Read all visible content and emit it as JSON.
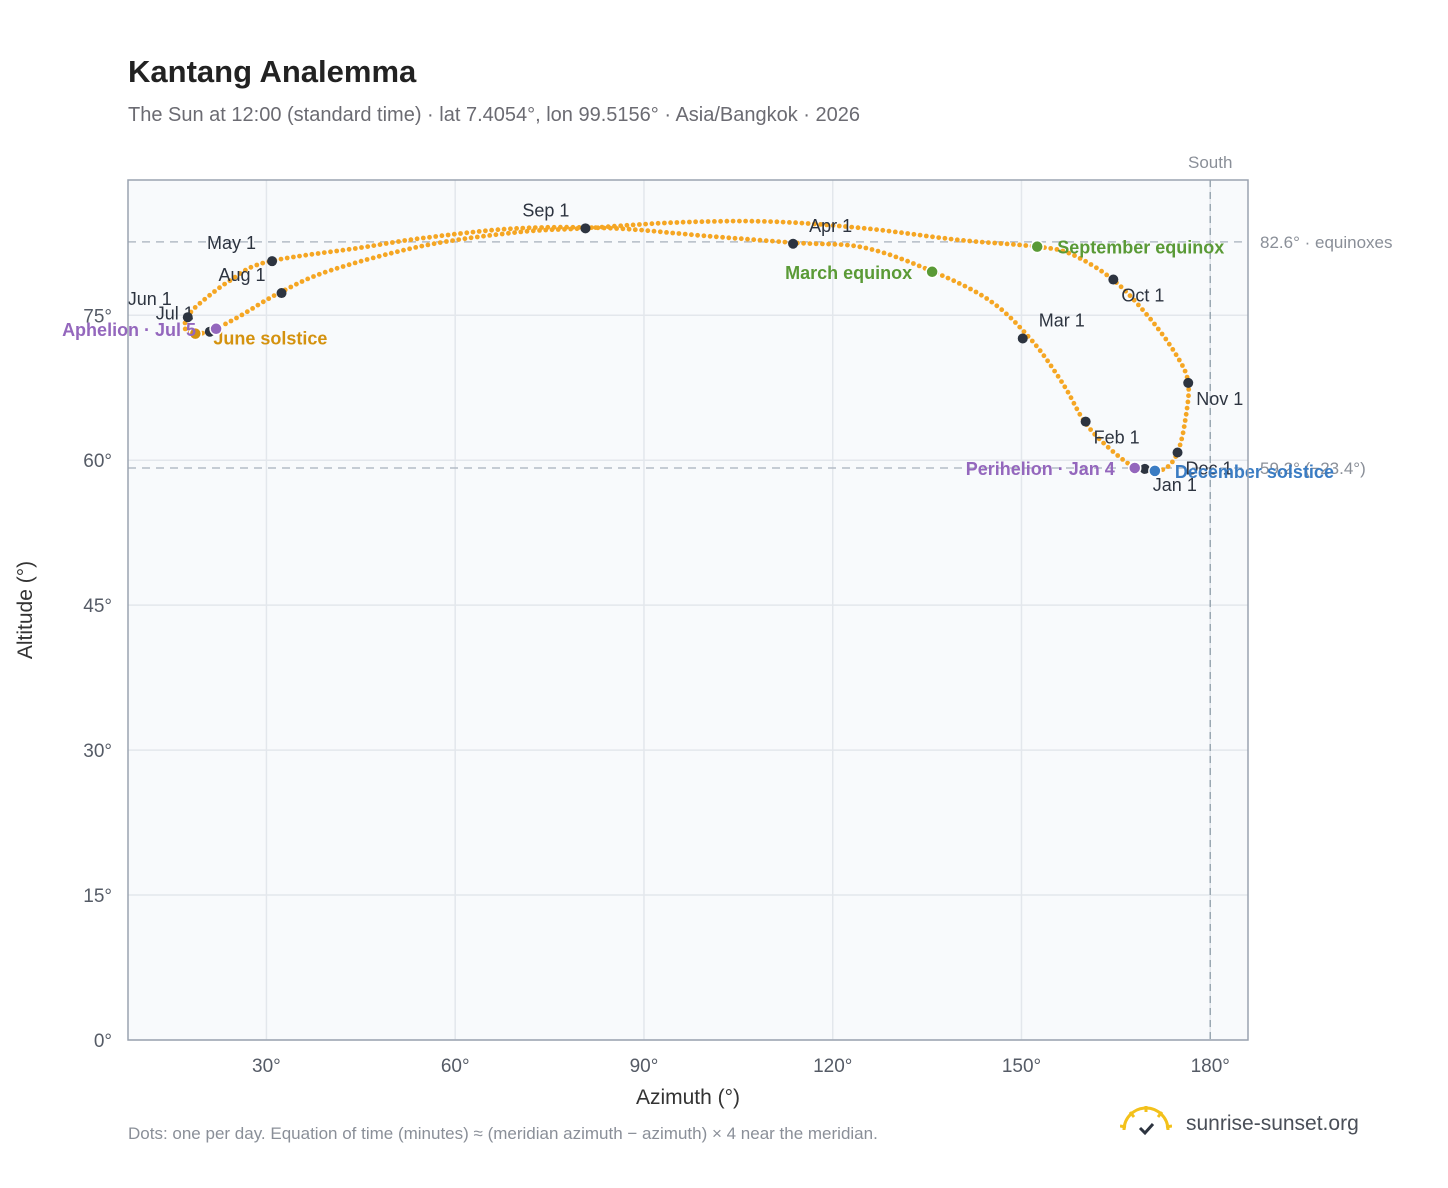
{
  "header": {
    "title": "Kantang Analemma",
    "subtitle": "The Sun at 12:00 (standard time) · lat 7.4054°, lon 99.5156° · Asia/Bangkok · 2026"
  },
  "footer": {
    "note": "Dots: one per day. Equation of time (minutes) ≈ (meridian azimuth − azimuth) × 4 near the meridian.",
    "brand": "sunrise-sunset.org"
  },
  "chart_data": {
    "type": "scatter",
    "xlabel": "Azimuth (°)",
    "ylabel": "Altitude (°)",
    "xlim": [
      8,
      186
    ],
    "ylim": [
      0,
      89
    ],
    "xticks": [
      30,
      60,
      90,
      120,
      150,
      180
    ],
    "yticks": [
      0,
      15,
      30,
      45,
      60,
      75
    ],
    "xtick_labels": [
      "30°",
      "60°",
      "90°",
      "120°",
      "150°",
      "180°"
    ],
    "ytick_labels": [
      "0°",
      "15°",
      "30°",
      "45°",
      "60°",
      "75°"
    ],
    "grid": true,
    "south_line": {
      "azimuth": 180,
      "label": "South"
    },
    "reference_lines": [
      {
        "altitude": 82.6,
        "label": "82.6° · equinoxes"
      },
      {
        "altitude": 59.2,
        "label": "59.2° (−23.4°)"
      }
    ],
    "colors": {
      "analemma": "#f5a623",
      "month_marker": "#2d3440",
      "equinox": "#5a9a36",
      "december_solstice": "#3a7cc3",
      "june_solstice": "#d4920f",
      "apsis": "#9467bd",
      "plot_bg": "#f8fafc",
      "grid": "#e3e7ec",
      "frame": "#9aa3b0"
    },
    "curve": [
      [
        170.5,
        58.8
      ],
      [
        168.0,
        59.2
      ],
      [
        163.5,
        61.5
      ],
      [
        160.0,
        64.0
      ],
      [
        156.5,
        68.0
      ],
      [
        151.5,
        72.5
      ],
      [
        145.0,
        76.5
      ],
      [
        136.0,
        79.5
      ],
      [
        125.0,
        82.0
      ],
      [
        114.0,
        82.5
      ],
      [
        100.0,
        83.2
      ],
      [
        85.0,
        84.0
      ],
      [
        70.0,
        84.0
      ],
      [
        55.0,
        83.0
      ],
      [
        45.0,
        82.0
      ],
      [
        30.0,
        80.5
      ],
      [
        24.0,
        78.5
      ],
      [
        19.0,
        76.0
      ],
      [
        17.5,
        74.8
      ],
      [
        17.0,
        73.7
      ],
      [
        18.5,
        73.1
      ],
      [
        21.0,
        73.3
      ],
      [
        22.0,
        73.6
      ],
      [
        26.0,
        75.0
      ],
      [
        32.0,
        77.3
      ],
      [
        40.0,
        79.6
      ],
      [
        55.0,
        82.2
      ],
      [
        70.0,
        83.6
      ],
      [
        80.5,
        84.0
      ],
      [
        95.0,
        84.6
      ],
      [
        110.0,
        84.7
      ],
      [
        125.0,
        84.0
      ],
      [
        140.0,
        82.8
      ],
      [
        152.5,
        82.1
      ],
      [
        158.0,
        81.3
      ],
      [
        164.5,
        78.7
      ],
      [
        170.0,
        75.0
      ],
      [
        174.5,
        71.0
      ],
      [
        176.5,
        68.0
      ],
      [
        176.0,
        64.0
      ],
      [
        174.8,
        60.8
      ],
      [
        173.0,
        59.2
      ],
      [
        170.5,
        58.8
      ]
    ],
    "month_markers": [
      {
        "label": "Jan 1",
        "azimuth": 169.6,
        "altitude": 59.1,
        "anchor": "below-right"
      },
      {
        "label": "Feb 1",
        "azimuth": 160.2,
        "altitude": 64.0,
        "anchor": "below-right"
      },
      {
        "label": "Mar 1",
        "azimuth": 150.2,
        "altitude": 72.6,
        "anchor": "above-right"
      },
      {
        "label": "Apr 1",
        "azimuth": 113.7,
        "altitude": 82.4,
        "anchor": "above-right"
      },
      {
        "label": "May 1",
        "azimuth": 30.9,
        "altitude": 80.6,
        "anchor": "above-left"
      },
      {
        "label": "Jun 1",
        "azimuth": 17.5,
        "altitude": 74.8,
        "anchor": "above-left"
      },
      {
        "label": "Jul 1",
        "azimuth": 21.0,
        "altitude": 73.3,
        "anchor": "above-left"
      },
      {
        "label": "Aug 1",
        "azimuth": 32.4,
        "altitude": 77.3,
        "anchor": "above-left"
      },
      {
        "label": "Sep 1",
        "azimuth": 80.7,
        "altitude": 84.0,
        "anchor": "above-left"
      },
      {
        "label": "Oct 1",
        "azimuth": 164.6,
        "altitude": 78.7,
        "anchor": "below-right"
      },
      {
        "label": "Nov 1",
        "azimuth": 176.5,
        "altitude": 68.0,
        "anchor": "below-right"
      },
      {
        "label": "Dec 1",
        "azimuth": 174.8,
        "altitude": 60.8,
        "anchor": "below-right"
      }
    ],
    "events": [
      {
        "label": "March equinox",
        "azimuth": 135.8,
        "altitude": 79.5,
        "color": "#5a9a36",
        "anchor": "left"
      },
      {
        "label": "September equinox",
        "azimuth": 152.5,
        "altitude": 82.1,
        "color": "#5a9a36",
        "anchor": "right"
      },
      {
        "label": "June solstice",
        "azimuth": 18.7,
        "altitude": 73.1,
        "color": "#d4920f",
        "anchor": "right-below"
      },
      {
        "label": "December solstice",
        "azimuth": 171.2,
        "altitude": 58.9,
        "color": "#3a7cc3",
        "anchor": "right"
      },
      {
        "label": "Aphelion · Jul 5",
        "azimuth": 22.0,
        "altitude": 73.6,
        "color": "#9467bd",
        "anchor": "left-far"
      },
      {
        "label": "Perihelion · Jan 4",
        "azimuth": 168.0,
        "altitude": 59.2,
        "color": "#9467bd",
        "anchor": "left"
      }
    ]
  }
}
